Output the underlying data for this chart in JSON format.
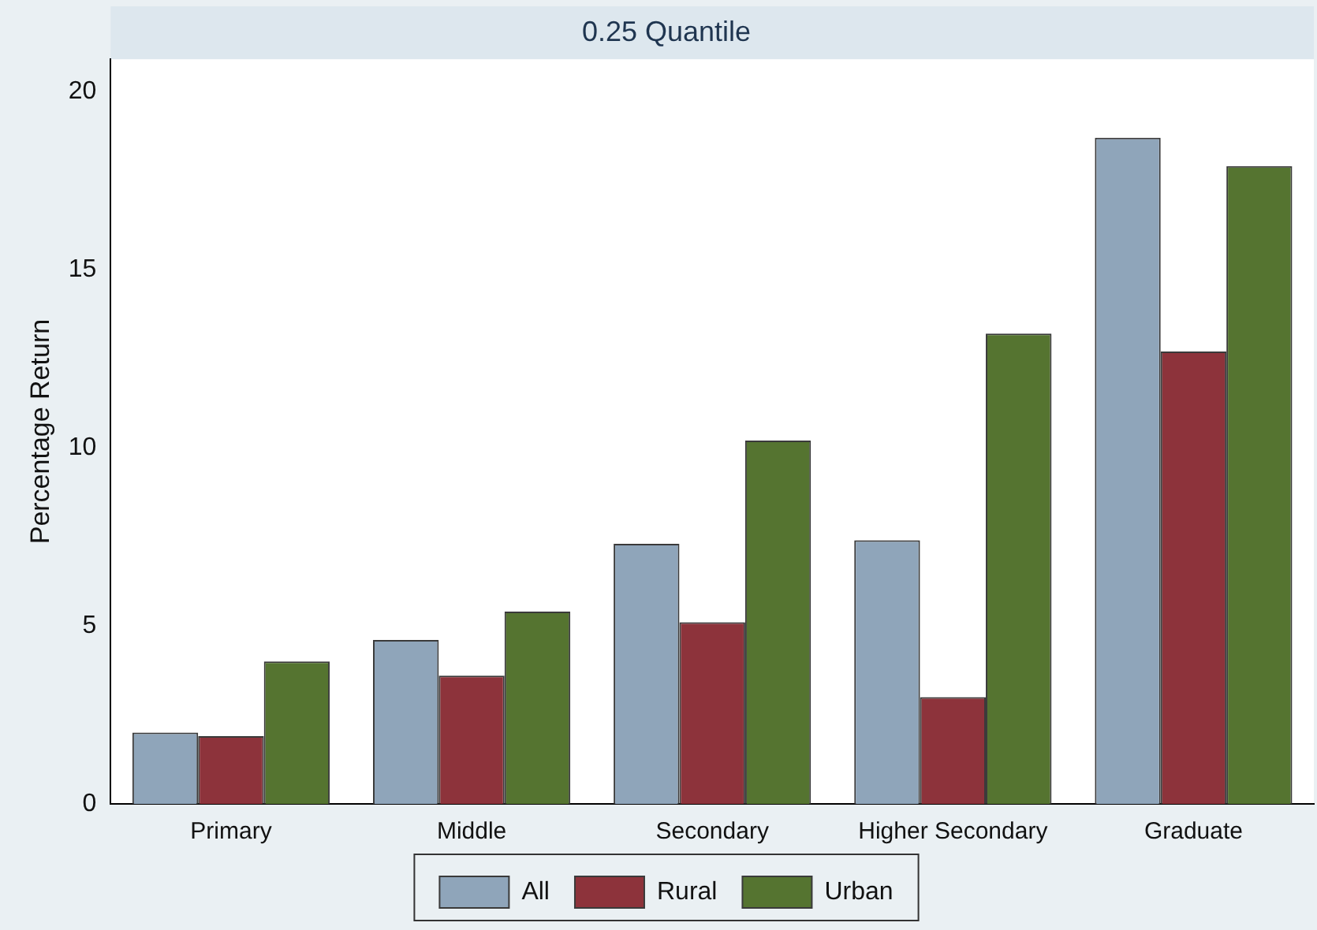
{
  "chart_data": {
    "type": "bar",
    "title": "0.25 Quantile",
    "ylabel": "Percentage Return",
    "categories": [
      "Primary",
      "Middle",
      "Secondary",
      "Higher Secondary",
      "Graduate"
    ],
    "series": [
      {
        "name": "All",
        "color": "#8fa5ba",
        "values": [
          2.0,
          4.6,
          7.3,
          7.4,
          18.7
        ]
      },
      {
        "name": "Rural",
        "color": "#8d333b",
        "values": [
          1.9,
          3.6,
          5.1,
          3.0,
          12.7
        ]
      },
      {
        "name": "Urban",
        "color": "#557430",
        "values": [
          4.0,
          5.4,
          10.2,
          13.2,
          17.9
        ]
      }
    ],
    "ylim": [
      0,
      20.9
    ],
    "yticks": [
      0,
      5,
      10,
      15,
      20
    ],
    "grid": false,
    "legend": "bottom"
  }
}
